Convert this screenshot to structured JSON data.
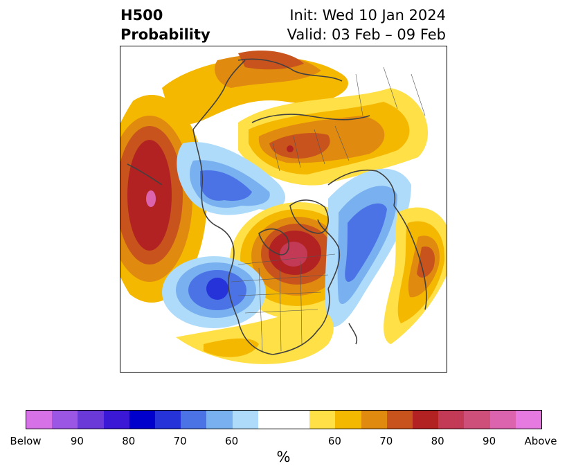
{
  "title": {
    "left_line1": "H500",
    "left_line2": "Probability",
    "right_line1": "Init: Wed 10 Jan 2024",
    "right_line2": "Valid: 03 Feb – 09 Feb"
  },
  "colorbar": {
    "colors": [
      "#d671e8",
      "#9c56e4",
      "#6c39d9",
      "#3b18d5",
      "#0000cc",
      "#2633d9",
      "#4b73e6",
      "#78b0f0",
      "#aedbfa",
      "#ffffff",
      "#ffe046",
      "#f5b800",
      "#e08a0f",
      "#c8531d",
      "#b22222",
      "#c23a55",
      "#cd4f7a",
      "#dc64ae",
      "#e77ae0"
    ],
    "labels": [
      "Below",
      "90",
      "80",
      "70",
      "60",
      "60",
      "70",
      "80",
      "90",
      "Above"
    ],
    "unit": "%"
  },
  "map": {
    "colors": {
      "yellow": "#ffe046",
      "gold": "#f5b800",
      "orange": "#e08a0f",
      "dark_orange": "#c8531d",
      "red": "#b22222",
      "magenta": "#c23a55",
      "pink": "#dc64ae",
      "light_blue": "#aedbfa",
      "sky_blue": "#78b0f0",
      "blue": "#4b73e6",
      "dark_blue": "#2633d9",
      "royal": "#0000cc",
      "coast": "#404040"
    }
  }
}
